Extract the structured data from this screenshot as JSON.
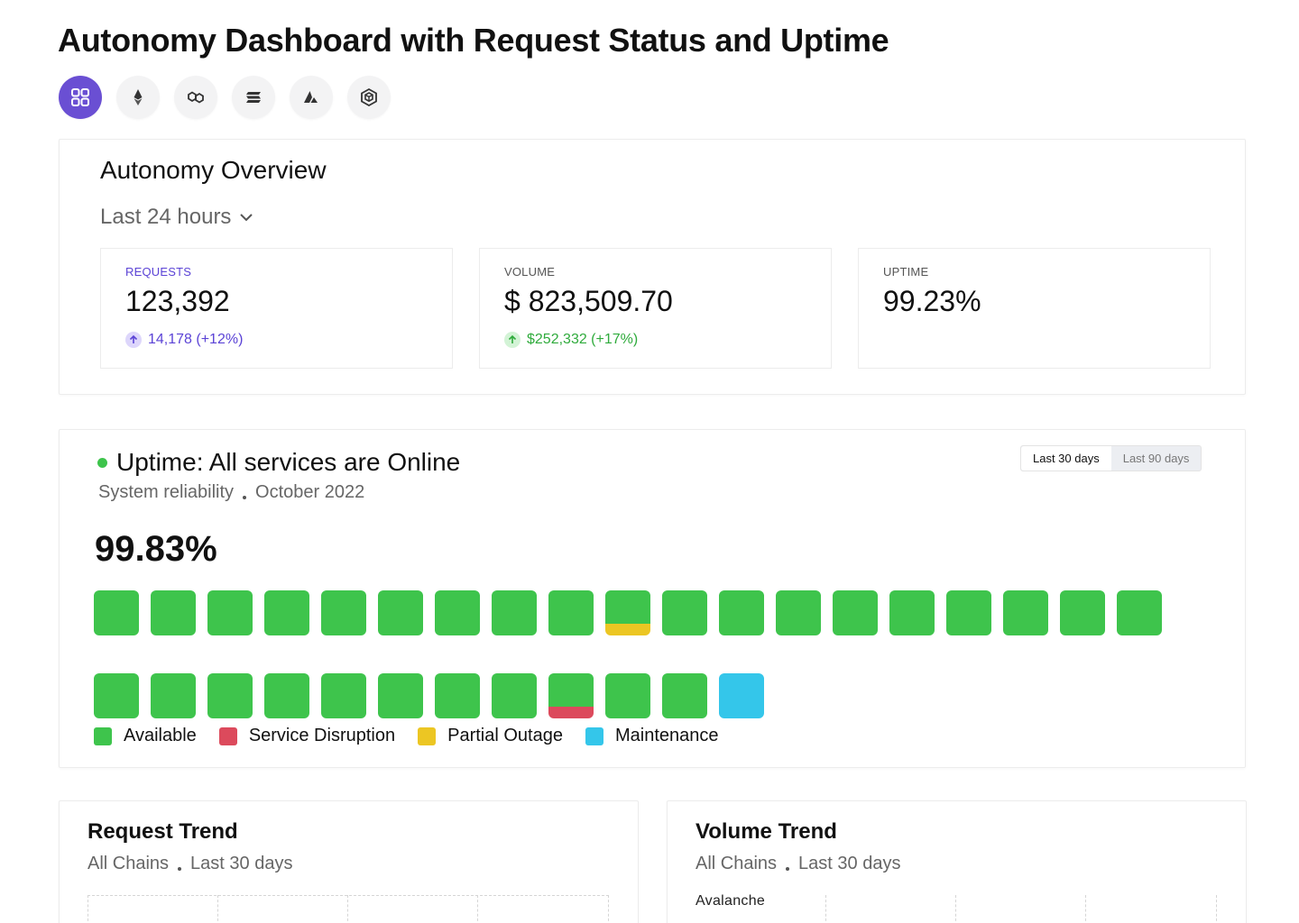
{
  "page": {
    "title": "Autonomy Dashboard with Request Status and Uptime"
  },
  "chains": [
    {
      "icon": "grid-icon",
      "active": true
    },
    {
      "icon": "ethereum-icon",
      "active": false
    },
    {
      "icon": "polygon-icon",
      "active": false
    },
    {
      "icon": "solana-icon",
      "active": false
    },
    {
      "icon": "avalanche-icon",
      "active": false
    },
    {
      "icon": "bnb-icon",
      "active": false
    }
  ],
  "overview": {
    "title": "Autonomy Overview",
    "period": "Last 24 hours",
    "stats": [
      {
        "label": "REQUESTS",
        "value": "123,392",
        "delta": "14,178 (+12%)",
        "accent": "#5b43d6",
        "accent_bg": "#ddd6fb"
      },
      {
        "label": "VOLUME",
        "value": "$ 823,509.70",
        "delta": "$252,332 (+17%)",
        "accent": "#2fab3c",
        "accent_bg": "#d3f3d6"
      },
      {
        "label": "UPTIME",
        "value": "99.23%",
        "delta": "",
        "accent": "#555555",
        "accent_bg": "#ffffff"
      }
    ]
  },
  "uptime": {
    "title": "Uptime: All services are Online",
    "subtitle": "System reliability",
    "month": "October 2022",
    "percentage": "99.83%",
    "ranges": [
      "Last 30 days",
      "Last 90 days"
    ],
    "selected_range": "Last 30 days",
    "days": [
      "available",
      "available",
      "available",
      "available",
      "available",
      "available",
      "available",
      "available",
      "available",
      "partial",
      "available",
      "available",
      "available",
      "available",
      "available",
      "available",
      "available",
      "available",
      "available",
      "available",
      "available",
      "available",
      "available",
      "available",
      "available",
      "available",
      "available",
      "disruption",
      "available",
      "available",
      "maintenance"
    ],
    "legend": [
      {
        "key": "available",
        "label": "Available",
        "color": "#3ec44c"
      },
      {
        "key": "disruption",
        "label": "Service Disruption",
        "color": "#dc4a5c"
      },
      {
        "key": "partial",
        "label": "Partial Outage",
        "color": "#ecc623"
      },
      {
        "key": "maintenance",
        "label": "Maintenance",
        "color": "#34c6ea"
      }
    ]
  },
  "request_trend": {
    "title": "Request Trend",
    "scope": "All Chains",
    "period": "Last 30 days"
  },
  "volume_trend": {
    "title": "Volume Trend",
    "scope": "All Chains",
    "period": "Last 30 days",
    "first_row_label": "Avalanche"
  }
}
